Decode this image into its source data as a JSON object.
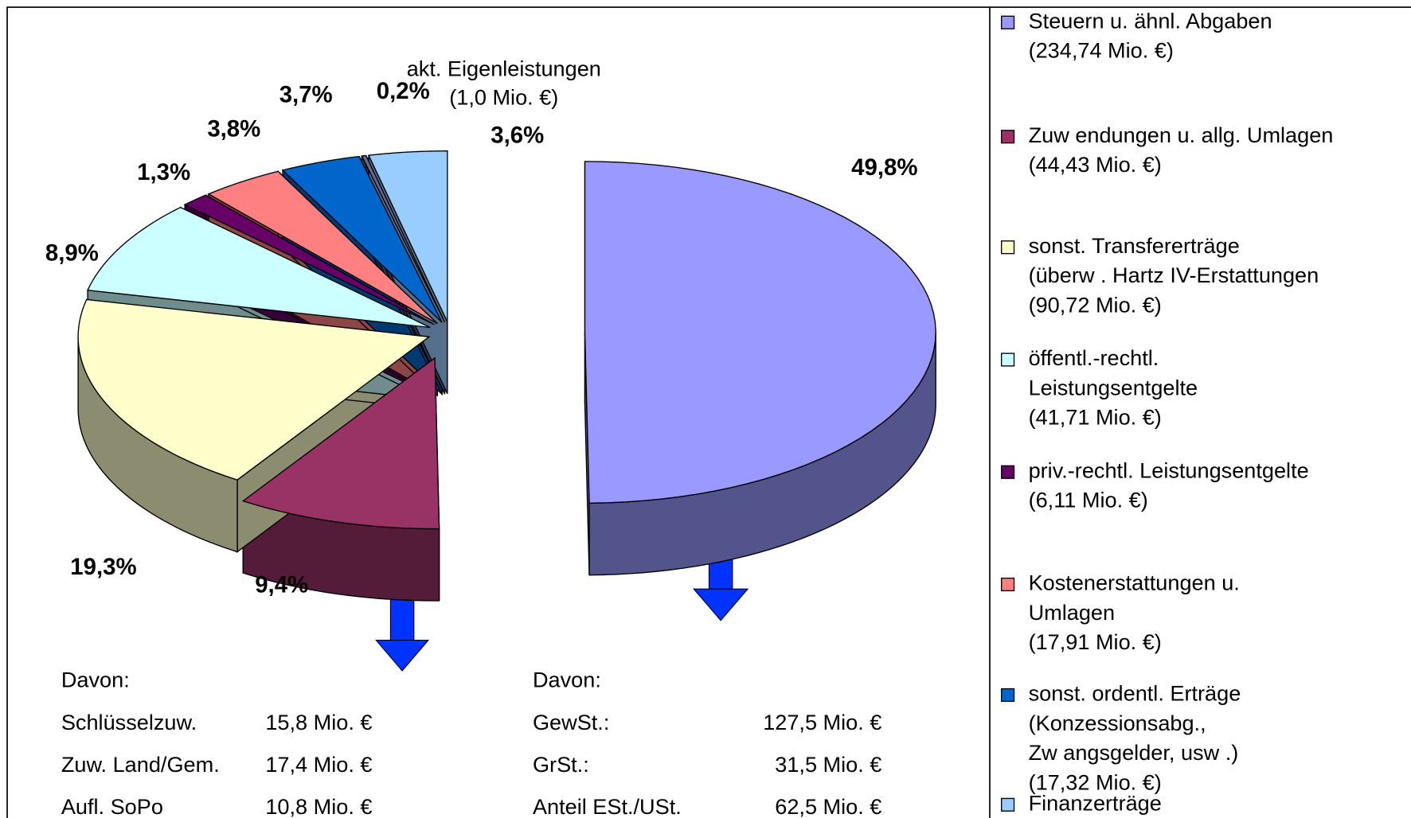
{
  "chart_data": {
    "type": "pie",
    "categories": [
      [
        "Steuern u. ähnl. Abgaben",
        "(234,74 Mio. €)"
      ],
      [
        "Zuw endungen u. allg. Umlagen",
        "(44,43 Mio. €)"
      ],
      [
        "sonst. Transfererträge",
        "(überw . Hartz IV-Erstattungen",
        "(90,72 Mio. €)"
      ],
      [
        "öffentl.-rechtl.",
        "Leistungsentgelte",
        "(41,71 Mio. €)"
      ],
      [
        "priv.-rechtl. Leistungsentgelte",
        "(6,11 Mio. €)"
      ],
      [
        "Kostenerstattungen u.",
        "Umlagen",
        "(17,91 Mio. €)"
      ],
      [
        "sonst. ordentl. Erträge",
        "(Konzessionsabg.,",
        "Zw angsgelder, usw .)",
        "(17,32 Mio. €)"
      ],
      null,
      [
        "Finanzerträge"
      ]
    ],
    "values": [
      49.8,
      9.4,
      19.3,
      8.9,
      1.3,
      3.8,
      3.7,
      0.2,
      3.6
    ],
    "value_labels": [
      "49,8%",
      "9,4%",
      "19,3%",
      "8,9%",
      "1,3%",
      "3,8%",
      "3,7%",
      "0,2%",
      "3,6%"
    ],
    "colors": [
      "#9999ff",
      "#993366",
      "#ffffcc",
      "#ccffff",
      "#660066",
      "#ff8080",
      "#0066cc",
      "#666699",
      "#99ccff"
    ],
    "annotation": [
      "akt. Eigenleistungen",
      "(1,0 Mio. €)"
    ],
    "legend": "right"
  },
  "breakdowns": [
    {
      "heading": "Davon:",
      "rows": [
        [
          "Schlüsselzuw.",
          "15,8 Mio. €"
        ],
        [
          "Zuw. Land/Gem.",
          "17,4 Mio. €"
        ],
        [
          "Aufl. SoPo",
          "10,8 Mio. €"
        ]
      ]
    },
    {
      "heading": "Davon:",
      "rows": [
        [
          "GewSt.:",
          "127,5 Mio. €"
        ],
        [
          "GrSt.:",
          "31,5 Mio. €"
        ],
        [
          "Anteil ESt./USt.",
          "62,5 Mio. €"
        ]
      ]
    }
  ]
}
